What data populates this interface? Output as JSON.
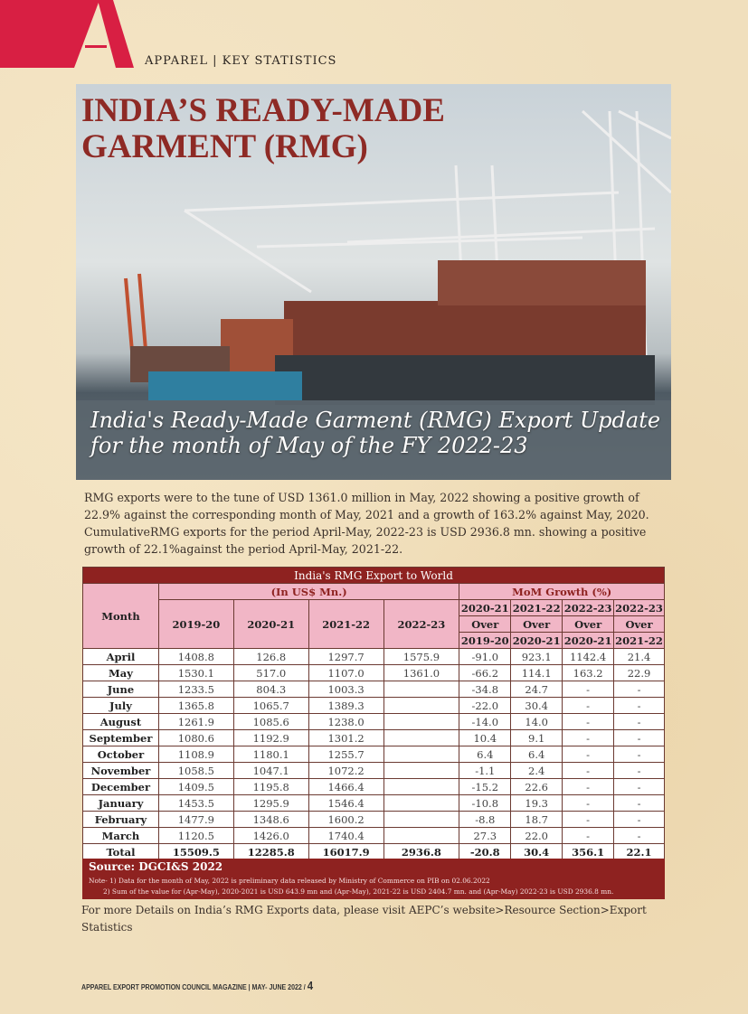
{
  "header": {
    "section": "APPAREL | KEY STATISTICS",
    "logo_letter": "A"
  },
  "hero": {
    "title_line1": "INDIA’S READY-MADE",
    "title_line2": "GARMENT (RMG)",
    "subtitle_line1": "India's Ready-Made Garment (RMG) Export Update",
    "subtitle_line2": "for the month of May of the FY 2022-23"
  },
  "intro": "RMG exports were to the tune of USD 1361.0 million in May, 2022 showing a positive growth of 22.9% against the corresponding month of May, 2021 and a growth of 163.2% against May, 2020. CumulativeRMG exports for the period April-May, 2022-23 is USD 2936.8 mn. showing a positive growth of 22.1%against the period April-May, 2021-22.",
  "table": {
    "title": "India's RMG Export to World",
    "month_header": "Month",
    "value_group": "(In US$ Mn.)",
    "growth_group": "MoM Growth (%)",
    "value_years": [
      "2019-20",
      "2020-21",
      "2021-22",
      "2022-23"
    ],
    "growth_headers": [
      [
        "2020-21",
        "Over",
        "2019-20"
      ],
      [
        "2021-22",
        "Over",
        "2020-21"
      ],
      [
        "2022-23",
        "Over",
        "2020-21"
      ],
      [
        "2022-23",
        "Over",
        "2021-22"
      ]
    ],
    "rows": [
      [
        "April",
        "1408.8",
        "126.8",
        "1297.7",
        "1575.9",
        "-91.0",
        "923.1",
        "1142.4",
        "21.4"
      ],
      [
        "May",
        "1530.1",
        "517.0",
        "1107.0",
        "1361.0",
        "-66.2",
        "114.1",
        "163.2",
        "22.9"
      ],
      [
        "June",
        "1233.5",
        "804.3",
        "1003.3",
        "",
        "-34.8",
        "24.7",
        "-",
        "-"
      ],
      [
        "July",
        "1365.8",
        "1065.7",
        "1389.3",
        "",
        "-22.0",
        "30.4",
        "-",
        "-"
      ],
      [
        "August",
        "1261.9",
        "1085.6",
        "1238.0",
        "",
        "-14.0",
        "14.0",
        "-",
        "-"
      ],
      [
        "September",
        "1080.6",
        "1192.9",
        "1301.2",
        "",
        "10.4",
        "9.1",
        "-",
        "-"
      ],
      [
        "October",
        "1108.9",
        "1180.1",
        "1255.7",
        "",
        "6.4",
        "6.4",
        "-",
        "-"
      ],
      [
        "November",
        "1058.5",
        "1047.1",
        "1072.2",
        "",
        "-1.1",
        "2.4",
        "-",
        "-"
      ],
      [
        "December",
        "1409.5",
        "1195.8",
        "1466.4",
        "",
        "-15.2",
        "22.6",
        "-",
        "-"
      ],
      [
        "January",
        "1453.5",
        "1295.9",
        "1546.4",
        "",
        "-10.8",
        "19.3",
        "-",
        "-"
      ],
      [
        "February",
        "1477.9",
        "1348.6",
        "1600.2",
        "",
        "-8.8",
        "18.7",
        "-",
        "-"
      ],
      [
        "March",
        "1120.5",
        "1426.0",
        "1740.4",
        "",
        "27.3",
        "22.0",
        "-",
        "-"
      ]
    ],
    "total": [
      "Total",
      "15509.5",
      "12285.8",
      "16017.9",
      "2936.8",
      "-20.8",
      "30.4",
      "356.1",
      "22.1"
    ],
    "source": "Source: DGCI&S 2022",
    "note1": "Note- 1) Data for the month of May, 2022 is preliminary data released by Ministry of Commerce on PIB on 02.06.2022",
    "note2": "2) Sum of the value for (Apr-May), 2020-2021 is USD 643.9 mn and (Apr-May), 2021-22 is USD 2404.7 mn. and (Apr-May) 2022-23 is USD 2936.8 mn."
  },
  "more": "For more Details on India’s RMG Exports data, please visit AEPC’s website>Resource Section>Export Statistics",
  "footer": {
    "text": "APPAREL EXPORT PROMOTION COUNCIL MAGAZINE | MAY- JUNE 2022 /",
    "page": "4"
  },
  "colors": {
    "brand_red": "#d81f43",
    "table_red": "#8e2220",
    "header_pink": "#f1b6c6"
  }
}
